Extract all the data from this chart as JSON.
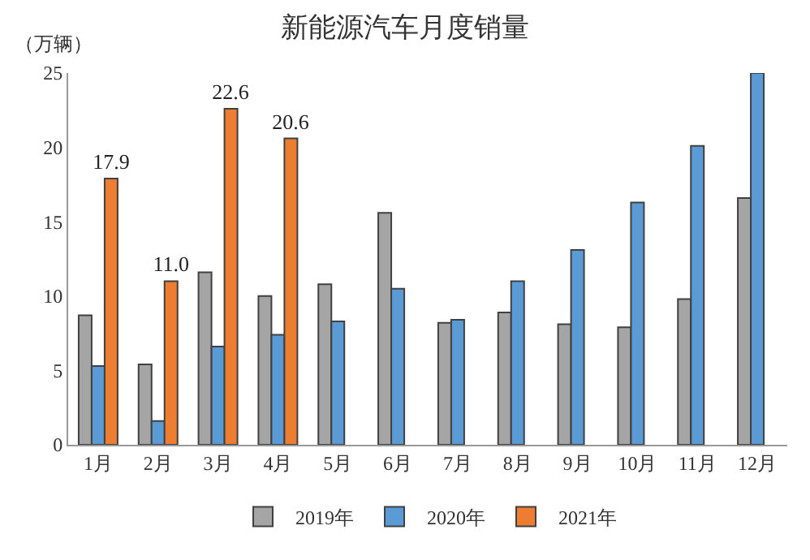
{
  "chart_data": {
    "type": "bar",
    "title": "新能源汽车月度销量",
    "ylabel": "（万辆）",
    "categories": [
      "1月",
      "2月",
      "3月",
      "4月",
      "5月",
      "6月",
      "7月",
      "8月",
      "9月",
      "10月",
      "11月",
      "12月"
    ],
    "series": [
      {
        "name": "2019年",
        "color": "#a5a5a5",
        "values": [
          8.7,
          5.4,
          11.6,
          10.0,
          10.8,
          15.6,
          8.2,
          8.9,
          8.1,
          7.9,
          9.8,
          16.6
        ]
      },
      {
        "name": "2020年",
        "color": "#5b9bd5",
        "values": [
          5.3,
          1.6,
          6.6,
          7.4,
          8.3,
          10.5,
          8.4,
          11.0,
          13.1,
          16.3,
          20.1,
          25.0
        ]
      },
      {
        "name": "2021年",
        "color": "#ed7d31",
        "values": [
          17.9,
          11.0,
          22.6,
          20.6,
          null,
          null,
          null,
          null,
          null,
          null,
          null,
          null
        ],
        "value_labels": [
          "17.9",
          "11.0",
          "22.6",
          "20.6",
          null,
          null,
          null,
          null,
          null,
          null,
          null,
          null
        ]
      }
    ],
    "ylim": [
      0,
      25
    ],
    "yticks": [
      0,
      5,
      10,
      15,
      20,
      25
    ],
    "grid": false,
    "legend": "bottom"
  }
}
